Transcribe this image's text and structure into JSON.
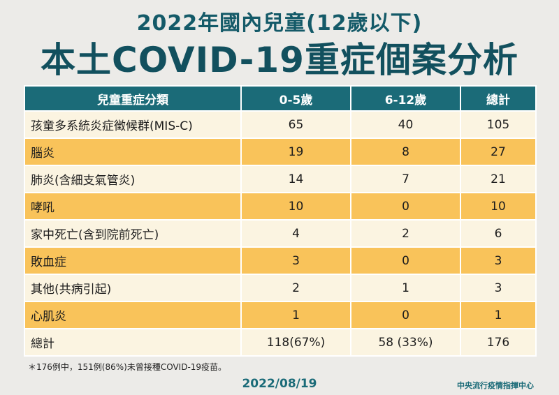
{
  "title_line1": "2022年國內兒童(12歲以下)",
  "title_line2": "本土COVID-19重症個案分析",
  "table": {
    "headers": [
      "兒童重症分類",
      "0-5歲",
      "6-12歲",
      "總計"
    ],
    "rows": [
      {
        "category": "孩童多系統炎症徵候群(MIS-C)",
        "age_0_5": "65",
        "age_6_12": "40",
        "total": "105"
      },
      {
        "category": "腦炎",
        "age_0_5": "19",
        "age_6_12": "8",
        "total": "27"
      },
      {
        "category": "肺炎(含細支氣管炎)",
        "age_0_5": "14",
        "age_6_12": "7",
        "total": "21"
      },
      {
        "category": "哮吼",
        "age_0_5": "10",
        "age_6_12": "0",
        "total": "10"
      },
      {
        "category": "家中死亡(含到院前死亡)",
        "age_0_5": "4",
        "age_6_12": "2",
        "total": "6"
      },
      {
        "category": "敗血症",
        "age_0_5": "3",
        "age_6_12": "0",
        "total": "3"
      },
      {
        "category": "其他(共病引起)",
        "age_0_5": "2",
        "age_6_12": "1",
        "total": "3"
      },
      {
        "category": "心肌炎",
        "age_0_5": "1",
        "age_6_12": "0",
        "total": "1"
      },
      {
        "category": "總計",
        "age_0_5": "118(67%)",
        "age_6_12": "58 (33%)",
        "total": "176"
      }
    ]
  },
  "footnote": "＊176例中，151例(86%)未曾接種COVID-19疫苗。",
  "date": "2022/08/19",
  "organization": "中央流行疫情指揮中心",
  "colors": {
    "header_bg": "#1b6b78",
    "title": "#145a68",
    "row_light": "#fbf4e1",
    "row_highlight": "#f9c35a",
    "page_bg": "#ecebe8"
  }
}
